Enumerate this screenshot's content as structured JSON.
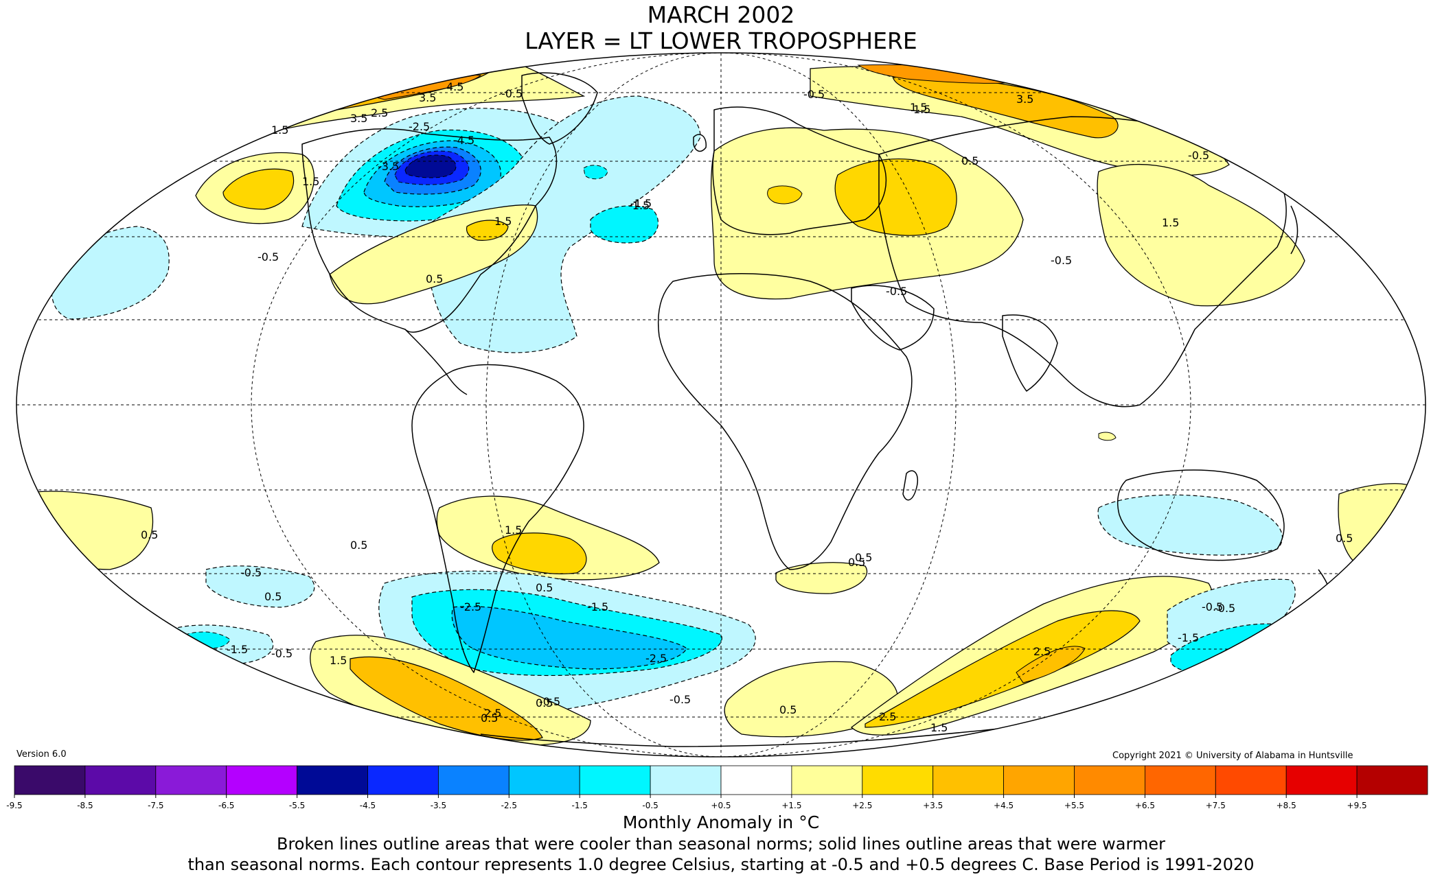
{
  "header": {
    "title_line_1": "MARCH 2002",
    "title_line_2": "LAYER = LT LOWER TROPOSPHERE"
  },
  "map": {
    "projection": "Mollweide",
    "region": "global",
    "meridian_lines": "dashed",
    "parallel_lines": "dashed",
    "contour_labels": [
      "4.5",
      "3.5",
      "-0.5",
      "2.5",
      "-0.5",
      "3.5",
      "1.5",
      "3.5",
      "1.5",
      "-2.5",
      "-4.5",
      "-3.5",
      "-1.5",
      "1.5",
      "1.5",
      "-0.5",
      "0.5",
      "-1.5",
      "-0.5",
      "-0.5",
      "0.5",
      "1.5",
      "1.5",
      "-0.5",
      "1.5",
      "0.5",
      "0.5",
      "-0.5",
      "0.5",
      "0.5",
      "-1.5",
      "-2.5",
      "-2.5",
      "0.5",
      "1.5",
      "-0.5",
      "-1.5",
      "-0.5",
      "-0.5",
      "0.5",
      "2.5",
      "2.5",
      "1.5",
      "2.5",
      "-0.5",
      "-1.5",
      "0.5",
      "0.5",
      "-0.5",
      "0.5",
      "0.5"
    ]
  },
  "footer": {
    "version": "Version 6.0",
    "copyright": "Copyright 2021 © University of Alabama in Huntsville"
  },
  "colorbar": {
    "ticks": [
      "-9.5",
      "-8.5",
      "-7.5",
      "-6.5",
      "-5.5",
      "-4.5",
      "-3.5",
      "-2.5",
      "-1.5",
      "-0.5",
      "+0.5",
      "+1.5",
      "+2.5",
      "+3.5",
      "+4.5",
      "+5.5",
      "+6.5",
      "+7.5",
      "+8.5",
      "+9.5"
    ],
    "colors": [
      "#3a0a6a",
      "#5c0aa8",
      "#8a1ad8",
      "#b400ff",
      "#000a96",
      "#0a28ff",
      "#0a82ff",
      "#00c6ff",
      "#00f6ff",
      "#bff7ff",
      "#ffffff",
      "#ffff9a",
      "#ffdc00",
      "#ffc000",
      "#ffa500",
      "#ff8a00",
      "#ff6600",
      "#ff4a00",
      "#e60000",
      "#b40000"
    ]
  },
  "caption": {
    "units": "Monthly Anomaly in °C",
    "line_1": "Broken lines outline areas that were cooler than seasonal norms; solid lines outline areas that were warmer",
    "line_2": "than seasonal norms. Each contour represents 1.0 degree Celsius, starting at -0.5 and +0.5 degrees C. Base Period is 1991-2020"
  }
}
